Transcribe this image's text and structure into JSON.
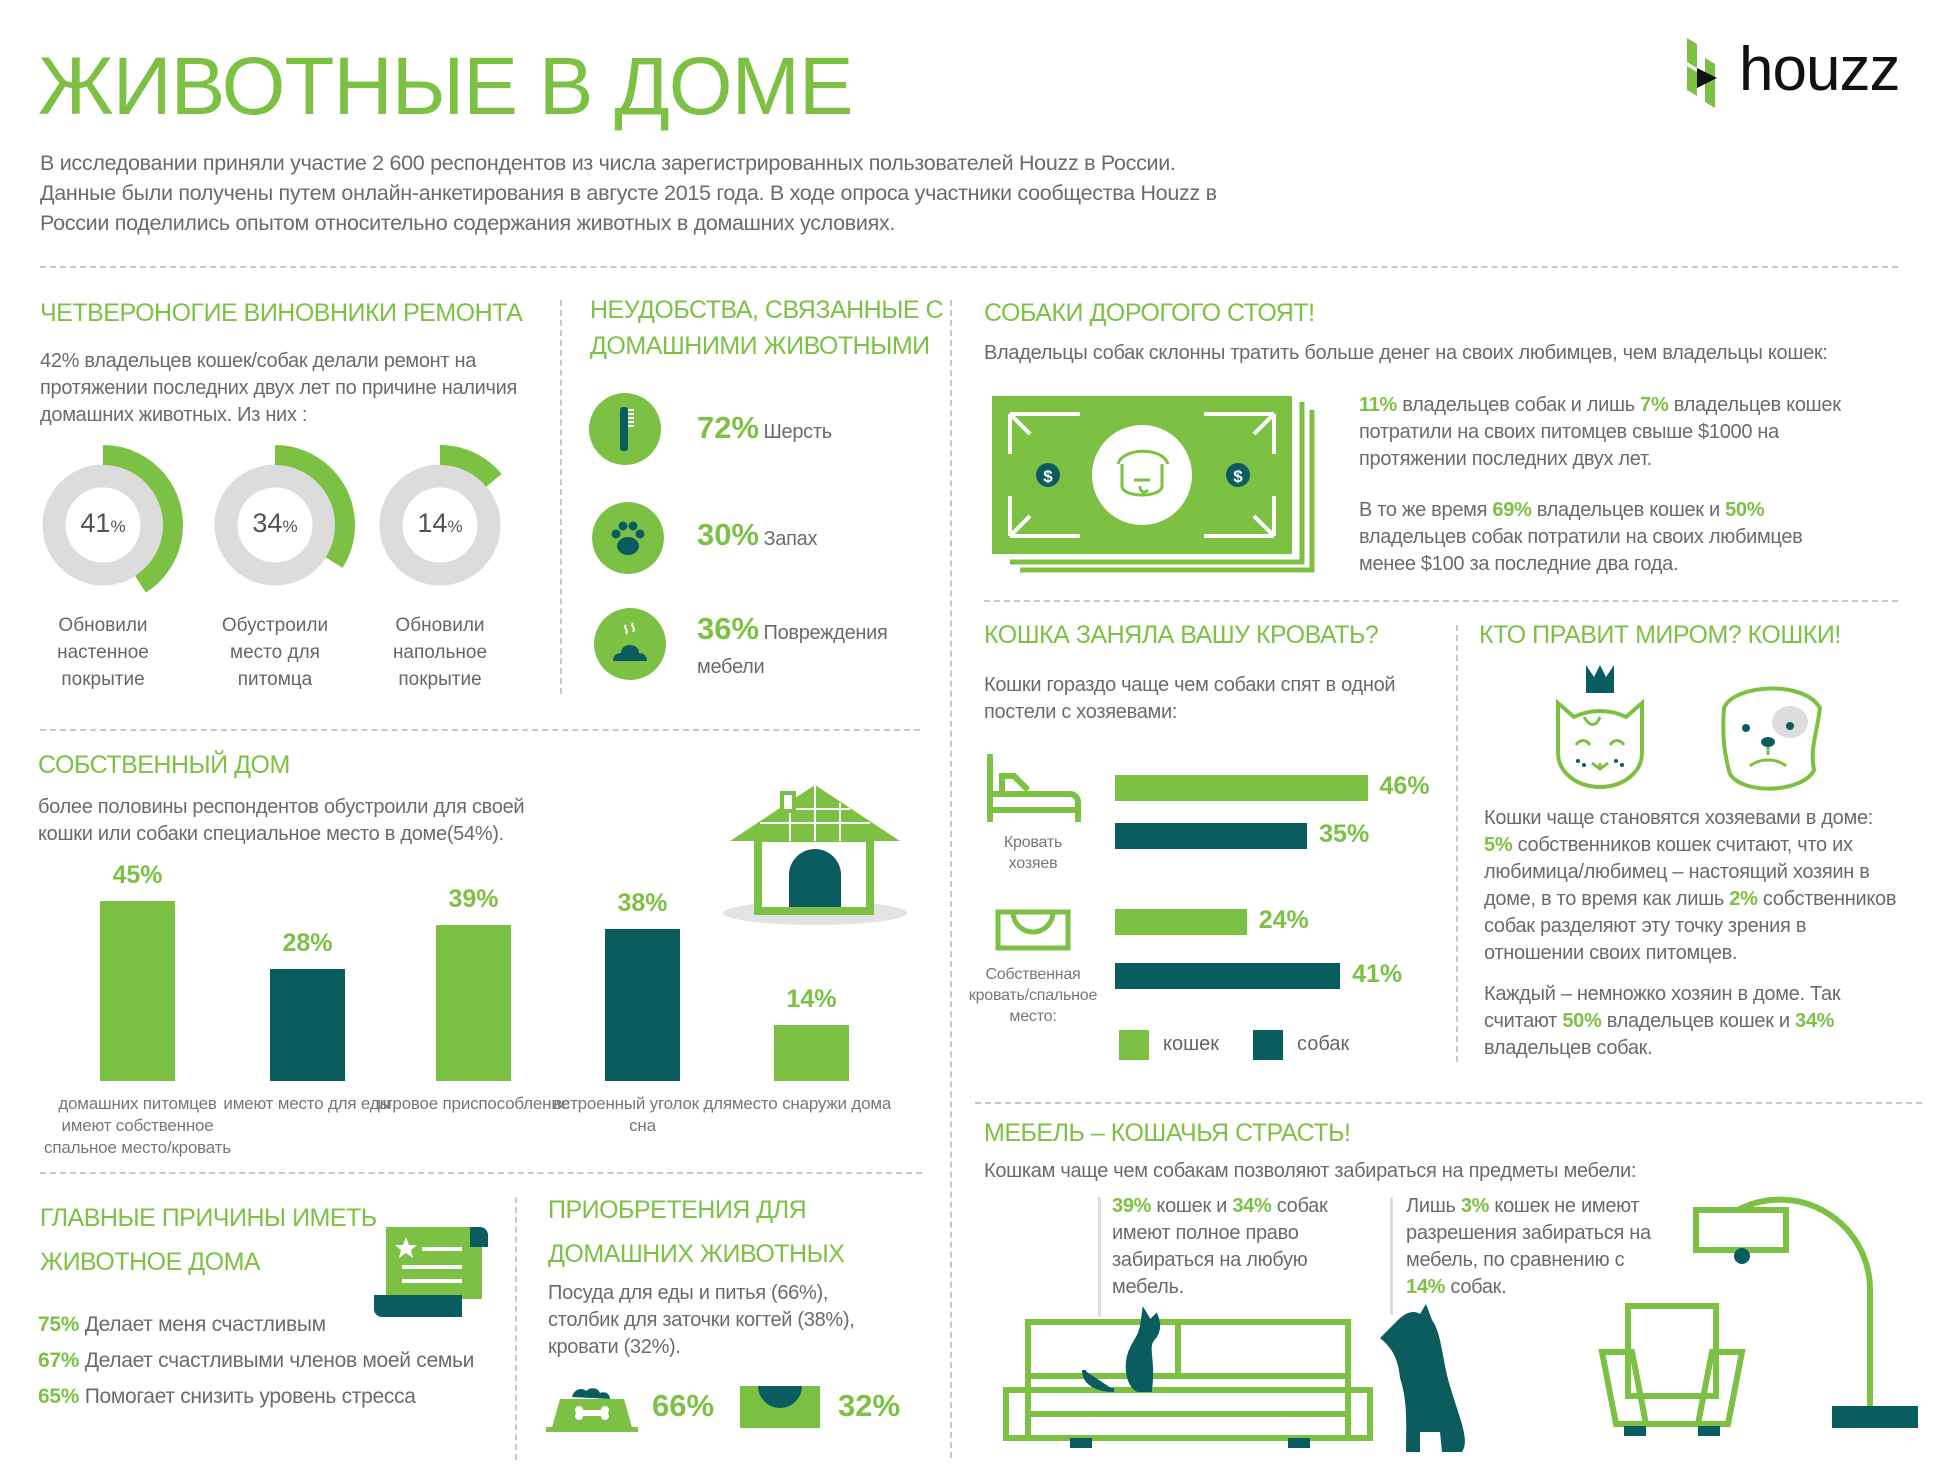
{
  "colors": {
    "green": "#7dc144",
    "teal": "#0b5c5e",
    "ring_gray": "#dcdcdc",
    "text": "#6b6b6b"
  },
  "title": "ЖИВОТНЫЕ В ДОМЕ",
  "logo": {
    "text": "houzz",
    "icon": "houzz-logo-icon"
  },
  "intro": [
    "В исследовании приняли участие 2 600 респондентов из числа зарегистрированных пользователей Houzz в России.",
    "Данные были получены путем онлайн-анкетирования в августе 2015 года.  В ходе опроса участники сообщества  Houzz в",
    "России поделились опытом относительно содержания животных в домашних условиях."
  ],
  "renovation": {
    "heading": "ЧЕТВЕРОНОГИЕ ВИНОВНИКИ РЕМОНТА",
    "text": "42% владельцев кошек/собак делали ремонт на протяжении последних двух лет по причине наличия домашних животных. Из них :"
  },
  "inconveniences": {
    "heading": [
      "НЕУДОБСТВА, СВЯЗАННЫЕ С",
      "ДОМАШНИМИ ЖИВОТНЫМИ"
    ],
    "items": [
      {
        "icon": "comb-icon",
        "value": "72%",
        "label": "Шерсть"
      },
      {
        "icon": "paw-icon",
        "value": "30%",
        "label": "Запах"
      },
      {
        "icon": "poop-icon",
        "value": "36%",
        "label": "Повреждения мебели"
      }
    ]
  },
  "dogs_cost": {
    "heading": "СОБАКИ ДОРОГОГО СТОЯТ!",
    "subtitle": "Владельцы собак склонны тратить больше денег на своих любимцев, чем владельцы кошек:",
    "illustration": "dollar-bill-dog-icon",
    "p1": [
      {
        "t": "11%",
        "hl": true
      },
      {
        "t": " владельцев собак и лишь "
      },
      {
        "t": "7%",
        "hl": true
      },
      {
        "t": " владельцев кошек потратили на своих питомцев свыше $1000 на протяжении последних двух лет."
      }
    ],
    "p2": [
      {
        "t": "В то же время "
      },
      {
        "t": "69%",
        "hl": true
      },
      {
        "t": " владельцев кошек и "
      },
      {
        "t": "50%",
        "hl": true
      },
      {
        "t": " владельцев собак потратили на своих любимцев менее $100 за последние два года."
      }
    ]
  },
  "own_home": {
    "heading": "СОБСТВЕННЫЙ ДОМ",
    "text": "более половины респондентов обустроили для своей кошки или собаки специальное место в доме(54%).",
    "illustration": "dog-house-icon"
  },
  "reasons": {
    "heading": [
      "ГЛАВНЫЕ ПРИЧИНЫ ИМЕТЬ",
      "ЖИВОТНОЕ ДОМА"
    ],
    "icon": "certificate-scroll-icon",
    "items": [
      {
        "value": "75%",
        "label": "Делает меня счастливым"
      },
      {
        "value": "67%",
        "label": "Делает счастливыми членов моей семьи"
      },
      {
        "value": "65%",
        "label": "Помогает снизить уровень стресса"
      }
    ]
  },
  "purchases": {
    "heading": [
      "ПРИОБРЕТЕНИЯ ДЛЯ",
      "ДОМАШНИХ ЖИВОТНЫХ"
    ],
    "text": "Посуда для еды и питья  (66%), столбик для заточки когтей (38%), кровати (32%).",
    "items": [
      {
        "icon": "food-bowl-icon",
        "value": "66%"
      },
      {
        "icon": "pet-bed-icon",
        "value": "32%"
      }
    ]
  },
  "bed": {
    "heading": "КОШКА ЗАНЯЛА ВАШУ КРОВАТЬ?",
    "text": "Кошки гораздо чаще чем собаки спят в одной постели с хозяевами:"
  },
  "rule": {
    "heading": "КТО ПРАВИТ МИРОМ? КОШКИ!",
    "icons": [
      "crowned-cat-icon",
      "bulldog-icon"
    ],
    "p1": [
      {
        "t": "Кошки чаще становятся хозяевами в доме: "
      },
      {
        "t": "5%",
        "hl": true
      },
      {
        "t": " собственников кошек считают, что их любимица/любимец – настоящий хозяин в доме, в то время как лишь "
      },
      {
        "t": "2%",
        "hl": true
      },
      {
        "t": " собственников собак разделяют эту точку зрения в отношении своих питомцев."
      }
    ],
    "p2": [
      {
        "t": "Каждый – немножко хозяин в доме. Так считают "
      },
      {
        "t": "50%",
        "hl": true
      },
      {
        "t": " владельцев кошек и "
      },
      {
        "t": "34%",
        "hl": true
      },
      {
        "t": " владельцев собак."
      }
    ]
  },
  "furniture": {
    "heading": "МЕБЕЛЬ – КОШАЧЬЯ СТРАСТЬ!",
    "subtitle": "Кошкам чаще чем собакам позволяют забираться на предметы мебели:",
    "p1": [
      {
        "t": "39%",
        "hl": true
      },
      {
        "t": " кошек и "
      },
      {
        "t": "34%",
        "hl": true
      },
      {
        "t": " собак имеют полное право забираться на любую мебель."
      }
    ],
    "p2": [
      {
        "t": "Лишь "
      },
      {
        "t": "3%",
        "hl": true
      },
      {
        "t": " кошек не имеют разрешения забираться на мебель, по сравнению с "
      },
      {
        "t": "14%",
        "hl": true
      },
      {
        "t": " собак."
      }
    ],
    "illustration": "sofa-cat-dog-armchair-lamp-icon"
  },
  "chart_data": [
    {
      "type": "donut",
      "categories": [
        "Обновили настенное покрытие",
        "Обустроили место для питомца",
        "Обновили напольное покрытие"
      ],
      "values": [
        41,
        34,
        14
      ],
      "value_labels": [
        "41",
        "34",
        "14"
      ],
      "unit": "%",
      "ylim": [
        0,
        100
      ]
    },
    {
      "type": "bar",
      "categories": [
        "домашних питомцев имеют собственное спальное место/кровать",
        "имеют место для еды",
        "игровое приспособление",
        "встроенный уголок для сна",
        "место снаружи дома"
      ],
      "values": [
        45,
        28,
        39,
        38,
        14
      ],
      "value_labels": [
        "45%",
        "28%",
        "39%",
        "38%",
        "14%"
      ],
      "bar_colors": [
        "#7dc144",
        "#0b5c5e",
        "#7dc144",
        "#0b5c5e",
        "#7dc144"
      ],
      "grid": false
    },
    {
      "type": "bar",
      "orientation": "horizontal",
      "categories": [
        "Кровать хозяев",
        "Собственная кровать/спальное место:"
      ],
      "category_icons": [
        "bed-icon",
        "pet-bed-icon"
      ],
      "series": [
        {
          "name": "кошек",
          "values": [
            46,
            24
          ],
          "value_labels": [
            "46%",
            "24%"
          ],
          "color": "#7dc144"
        },
        {
          "name": "собак",
          "values": [
            35,
            41
          ],
          "value_labels": [
            "35%",
            "41%"
          ],
          "color": "#0b5c5e"
        }
      ],
      "legend": "bottom",
      "grid": false
    }
  ]
}
